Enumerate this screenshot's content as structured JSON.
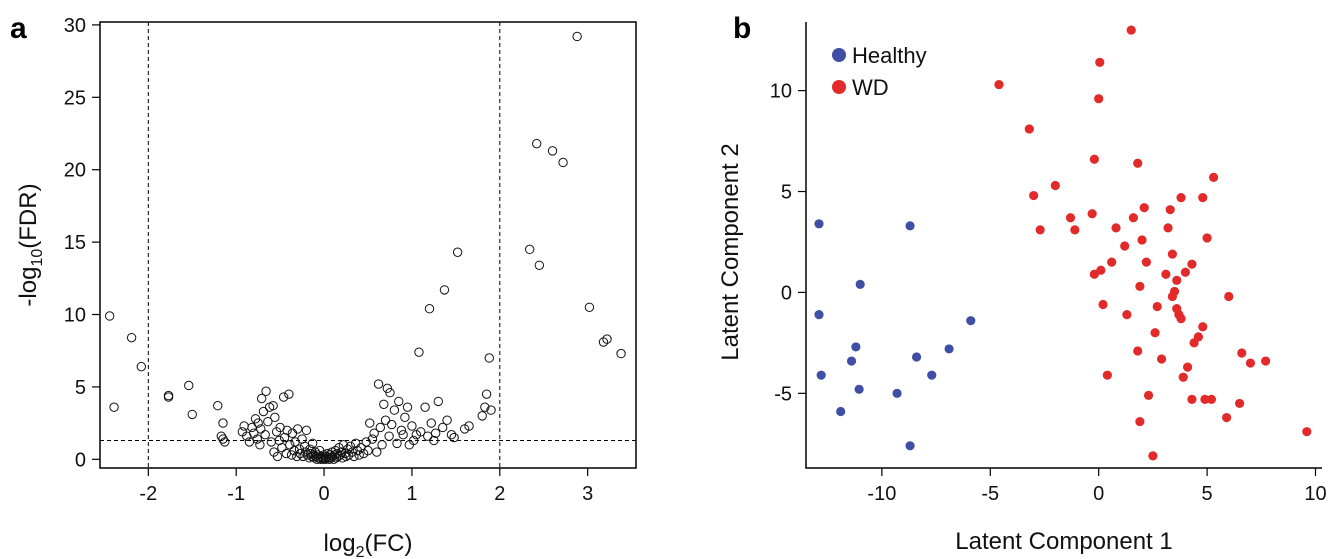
{
  "chart_data": [
    {
      "panel": "a",
      "type": "scatter",
      "title": "",
      "xlabel": {
        "main": "log",
        "sub": "2",
        "rest": "(FC)"
      },
      "ylabel": {
        "main": "-log",
        "sub": "10",
        "rest": "(FDR)"
      },
      "xlim": [
        -2.55,
        3.55
      ],
      "ylim": [
        -0.6,
        30.2
      ],
      "xticks": [
        "-2",
        "-1",
        "0",
        "1",
        "2",
        "3"
      ],
      "yticks": [
        "0",
        "5",
        "10",
        "15",
        "20",
        "25",
        "30"
      ],
      "marker": "open-circle",
      "grid": false,
      "thresholds": {
        "vertical": [
          -2,
          2
        ],
        "horizontal": [
          1.3
        ]
      },
      "points": [
        [
          -2.44,
          9.9
        ],
        [
          -2.39,
          3.6
        ],
        [
          -2.19,
          8.4
        ],
        [
          -2.08,
          6.4
        ],
        [
          -1.77,
          4.4
        ],
        [
          -1.77,
          4.3
        ],
        [
          -1.54,
          5.1
        ],
        [
          -1.5,
          3.1
        ],
        [
          -1.21,
          3.7
        ],
        [
          -1.15,
          2.5
        ],
        [
          -1.17,
          1.6
        ],
        [
          -1.15,
          1.4
        ],
        [
          -1.13,
          1.2
        ],
        [
          -0.93,
          1.9
        ],
        [
          -0.91,
          2.3
        ],
        [
          -0.88,
          1.6
        ],
        [
          -0.85,
          1.2
        ],
        [
          -0.82,
          2.2
        ],
        [
          -0.8,
          1.8
        ],
        [
          -0.78,
          2.8
        ],
        [
          -0.76,
          1.4
        ],
        [
          -0.75,
          2.5
        ],
        [
          -0.73,
          1.0
        ],
        [
          -0.72,
          2.1
        ],
        [
          -0.71,
          4.2
        ],
        [
          -0.69,
          3.3
        ],
        [
          -0.67,
          1.7
        ],
        [
          -0.66,
          4.7
        ],
        [
          -0.64,
          2.6
        ],
        [
          -0.62,
          3.6
        ],
        [
          -0.6,
          1.2
        ],
        [
          -0.58,
          3.7
        ],
        [
          -0.57,
          0.5
        ],
        [
          -0.56,
          2.9
        ],
        [
          -0.54,
          1.9
        ],
        [
          -0.53,
          0.2
        ],
        [
          -0.51,
          1.3
        ],
        [
          -0.5,
          2.2
        ],
        [
          -0.48,
          0.8
        ],
        [
          -0.46,
          4.3
        ],
        [
          -0.45,
          1.5
        ],
        [
          -0.43,
          0.4
        ],
        [
          -0.42,
          2.0
        ],
        [
          -0.4,
          4.5
        ],
        [
          -0.39,
          1.0
        ],
        [
          -0.37,
          0.3
        ],
        [
          -0.36,
          1.8
        ],
        [
          -0.34,
          0.6
        ],
        [
          -0.33,
          1.2
        ],
        [
          -0.31,
          0.2
        ],
        [
          -0.3,
          2.1
        ],
        [
          -0.28,
          0.7
        ],
        [
          -0.27,
          0.4
        ],
        [
          -0.25,
          1.4
        ],
        [
          -0.24,
          0.2
        ],
        [
          -0.22,
          0.9
        ],
        [
          -0.21,
          0.5
        ],
        [
          -0.2,
          2.0
        ],
        [
          -0.19,
          0.3
        ],
        [
          -0.17,
          0.1
        ],
        [
          -0.16,
          0.7
        ],
        [
          -0.15,
          0.4
        ],
        [
          -0.14,
          0.2
        ],
        [
          -0.13,
          1.1
        ],
        [
          -0.12,
          0.3
        ],
        [
          -0.11,
          0.1
        ],
        [
          -0.1,
          0.5
        ],
        [
          -0.09,
          0.2
        ],
        [
          -0.08,
          0.0
        ],
        [
          -0.07,
          0.3
        ],
        [
          -0.06,
          0.1
        ],
        [
          -0.05,
          0.6
        ],
        [
          -0.04,
          0.0
        ],
        [
          -0.03,
          0.2
        ],
        [
          -0.02,
          0.1
        ],
        [
          -0.01,
          0.0
        ],
        [
          0.0,
          0.3
        ],
        [
          0.01,
          0.1
        ],
        [
          0.02,
          0.0
        ],
        [
          0.03,
          0.2
        ],
        [
          0.04,
          0.4
        ],
        [
          0.05,
          0.1
        ],
        [
          0.06,
          0.0
        ],
        [
          0.07,
          0.3
        ],
        [
          0.08,
          0.1
        ],
        [
          0.09,
          0.5
        ],
        [
          0.1,
          0.2
        ],
        [
          0.11,
          0.0
        ],
        [
          0.12,
          0.3
        ],
        [
          0.13,
          0.6
        ],
        [
          0.14,
          0.1
        ],
        [
          0.15,
          0.4
        ],
        [
          0.16,
          0.2
        ],
        [
          0.17,
          0.8
        ],
        [
          0.18,
          0.3
        ],
        [
          0.2,
          0.5
        ],
        [
          0.21,
          0.1
        ],
        [
          0.22,
          1.0
        ],
        [
          0.24,
          0.4
        ],
        [
          0.25,
          0.2
        ],
        [
          0.27,
          0.7
        ],
        [
          0.28,
          0.3
        ],
        [
          0.3,
          0.9
        ],
        [
          0.32,
          0.5
        ],
        [
          0.34,
          0.2
        ],
        [
          0.36,
          1.1
        ],
        [
          0.38,
          0.6
        ],
        [
          0.4,
          0.3
        ],
        [
          0.42,
          0.8
        ],
        [
          0.45,
          0.4
        ],
        [
          0.48,
          1.2
        ],
        [
          0.5,
          0.6
        ],
        [
          0.52,
          2.5
        ],
        [
          0.55,
          1.4
        ],
        [
          0.57,
          1.8
        ],
        [
          0.6,
          0.5
        ],
        [
          0.62,
          5.2
        ],
        [
          0.64,
          2.2
        ],
        [
          0.66,
          1.0
        ],
        [
          0.68,
          3.8
        ],
        [
          0.7,
          2.7
        ],
        [
          0.72,
          4.9
        ],
        [
          0.74,
          1.6
        ],
        [
          0.75,
          4.6
        ],
        [
          0.77,
          2.4
        ],
        [
          0.8,
          3.4
        ],
        [
          0.83,
          1.1
        ],
        [
          0.85,
          4.0
        ],
        [
          0.88,
          2.0
        ],
        [
          0.9,
          1.7
        ],
        [
          0.92,
          2.9
        ],
        [
          0.95,
          3.6
        ],
        [
          0.97,
          1.0
        ],
        [
          1.0,
          2.3
        ],
        [
          1.02,
          1.3
        ],
        [
          1.05,
          1.7
        ],
        [
          1.08,
          7.4
        ],
        [
          1.1,
          1.9
        ],
        [
          1.15,
          3.6
        ],
        [
          1.18,
          1.6
        ],
        [
          1.2,
          10.4
        ],
        [
          1.22,
          2.5
        ],
        [
          1.25,
          1.3
        ],
        [
          1.27,
          1.8
        ],
        [
          1.3,
          4.0
        ],
        [
          1.35,
          2.2
        ],
        [
          1.37,
          11.7
        ],
        [
          1.4,
          2.7
        ],
        [
          1.45,
          1.7
        ],
        [
          1.48,
          1.5
        ],
        [
          1.52,
          14.3
        ],
        [
          1.6,
          2.1
        ],
        [
          1.65,
          2.3
        ],
        [
          1.8,
          3.0
        ],
        [
          1.83,
          3.6
        ],
        [
          1.85,
          4.5
        ],
        [
          1.88,
          7.0
        ],
        [
          1.9,
          3.4
        ],
        [
          2.34,
          14.5
        ],
        [
          2.42,
          21.8
        ],
        [
          2.45,
          13.4
        ],
        [
          2.6,
          21.3
        ],
        [
          2.72,
          20.5
        ],
        [
          2.88,
          29.2
        ],
        [
          3.02,
          10.5
        ],
        [
          3.18,
          8.1
        ],
        [
          3.22,
          8.3
        ],
        [
          3.38,
          7.3
        ]
      ]
    },
    {
      "panel": "b",
      "type": "scatter",
      "title": "",
      "xlabel": "Latent Component 1",
      "ylabel": "Latent Component 2",
      "xlim": [
        -13.5,
        10.3
      ],
      "ylim": [
        -8.7,
        13.4
      ],
      "xticks": [
        "-10",
        "-5",
        "0",
        "5",
        "10"
      ],
      "yticks": [
        "-5",
        "0",
        "5",
        "10"
      ],
      "grid": false,
      "legend_position": "top-left",
      "series": [
        {
          "name": "Healthy",
          "color": "#3f4fa6",
          "points": [
            [
              -12.9,
              3.4
            ],
            [
              -12.9,
              -1.1
            ],
            [
              -12.8,
              -4.1
            ],
            [
              -11.9,
              -5.9
            ],
            [
              -11.4,
              -3.4
            ],
            [
              -11.2,
              -2.7
            ],
            [
              -11.05,
              -4.8
            ],
            [
              -11.0,
              0.4
            ],
            [
              -9.3,
              -5.0
            ],
            [
              -8.7,
              3.3
            ],
            [
              -8.7,
              -7.6
            ],
            [
              -8.4,
              -3.2
            ],
            [
              -7.7,
              -4.1
            ],
            [
              -6.9,
              -2.8
            ],
            [
              -5.9,
              -1.4
            ]
          ]
        },
        {
          "name": "WD",
          "color": "#e22a2a",
          "points": [
            [
              -4.6,
              10.3
            ],
            [
              -3.2,
              8.1
            ],
            [
              -3.0,
              4.8
            ],
            [
              -2.7,
              3.1
            ],
            [
              -2.0,
              5.3
            ],
            [
              -1.3,
              3.7
            ],
            [
              -1.1,
              3.1
            ],
            [
              -0.3,
              3.9
            ],
            [
              -0.2,
              6.6
            ],
            [
              -0.2,
              0.9
            ],
            [
              0.0,
              9.6
            ],
            [
              0.05,
              11.4
            ],
            [
              0.1,
              1.1
            ],
            [
              0.2,
              -0.6
            ],
            [
              0.4,
              -4.1
            ],
            [
              0.6,
              1.5
            ],
            [
              0.8,
              3.2
            ],
            [
              1.2,
              2.3
            ],
            [
              1.3,
              -1.1
            ],
            [
              1.5,
              13.0
            ],
            [
              1.6,
              3.7
            ],
            [
              1.8,
              6.4
            ],
            [
              1.8,
              -2.9
            ],
            [
              1.9,
              0.3
            ],
            [
              1.9,
              -6.4
            ],
            [
              2.0,
              2.6
            ],
            [
              2.1,
              4.2
            ],
            [
              2.2,
              1.5
            ],
            [
              2.3,
              -5.1
            ],
            [
              2.5,
              -8.1
            ],
            [
              2.6,
              -2.0
            ],
            [
              2.7,
              -0.7
            ],
            [
              2.9,
              -3.3
            ],
            [
              3.1,
              0.9
            ],
            [
              3.2,
              3.2
            ],
            [
              3.3,
              4.1
            ],
            [
              3.4,
              1.9
            ],
            [
              3.4,
              -0.2
            ],
            [
              3.5,
              0.05
            ],
            [
              3.6,
              -0.8
            ],
            [
              3.6,
              0.6
            ],
            [
              3.7,
              -1.1
            ],
            [
              3.8,
              -1.3
            ],
            [
              3.8,
              4.7
            ],
            [
              3.9,
              -4.2
            ],
            [
              4.0,
              1.0
            ],
            [
              4.1,
              -3.7
            ],
            [
              4.3,
              1.4
            ],
            [
              4.3,
              -5.3
            ],
            [
              4.4,
              -2.5
            ],
            [
              4.6,
              -2.2
            ],
            [
              4.8,
              4.7
            ],
            [
              4.8,
              -1.7
            ],
            [
              4.9,
              -5.3
            ],
            [
              5.0,
              2.7
            ],
            [
              5.2,
              -5.3
            ],
            [
              5.3,
              5.7
            ],
            [
              5.9,
              -6.2
            ],
            [
              6.0,
              -0.2
            ],
            [
              6.5,
              -5.5
            ],
            [
              6.6,
              -3.0
            ],
            [
              7.0,
              -3.5
            ],
            [
              7.7,
              -3.4
            ],
            [
              9.6,
              -6.9
            ]
          ]
        }
      ]
    }
  ]
}
